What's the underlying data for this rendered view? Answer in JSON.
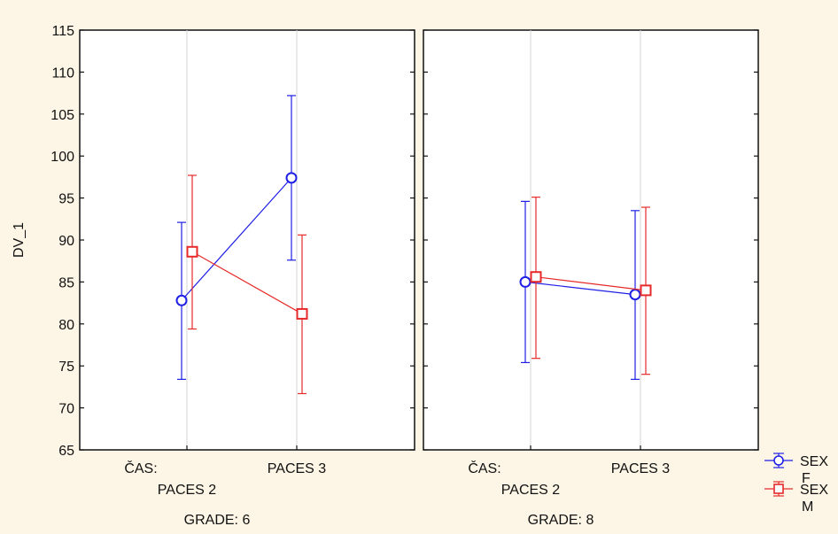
{
  "chart_data": {
    "type": "line",
    "title": "",
    "ylabel": "DV_1",
    "ylim": [
      65,
      115
    ],
    "yticks": [
      65,
      70,
      75,
      80,
      85,
      90,
      95,
      100,
      105,
      110,
      115
    ],
    "factor_label": "ČAS:",
    "categories": [
      "PACES 2",
      "PACES 3"
    ],
    "grid": true,
    "legend": {
      "placement": "right-bottom",
      "entries": [
        {
          "line1": "SEX",
          "line2": "F"
        },
        {
          "line1": "SEX",
          "line2": "M"
        }
      ]
    },
    "panels": [
      {
        "label": "GRADE: 6",
        "series": [
          {
            "key": "F",
            "color": "#1f1fe6",
            "marker": "circle",
            "values": [
              82.8,
              97.4
            ],
            "lower": [
              73.4,
              87.6
            ],
            "upper": [
              92.1,
              107.2
            ]
          },
          {
            "key": "M",
            "color": "#e62a2a",
            "marker": "square",
            "values": [
              88.6,
              81.2
            ],
            "lower": [
              79.4,
              71.7
            ],
            "upper": [
              97.7,
              90.6
            ]
          }
        ]
      },
      {
        "label": "GRADE: 8",
        "series": [
          {
            "key": "F",
            "color": "#1f1fe6",
            "marker": "circle",
            "values": [
              85.0,
              83.5
            ],
            "lower": [
              75.4,
              73.4
            ],
            "upper": [
              94.6,
              93.5
            ]
          },
          {
            "key": "M",
            "color": "#e62a2a",
            "marker": "square",
            "values": [
              85.6,
              84.0
            ],
            "lower": [
              75.9,
              74.0
            ],
            "upper": [
              95.1,
              93.9
            ]
          }
        ]
      }
    ]
  }
}
